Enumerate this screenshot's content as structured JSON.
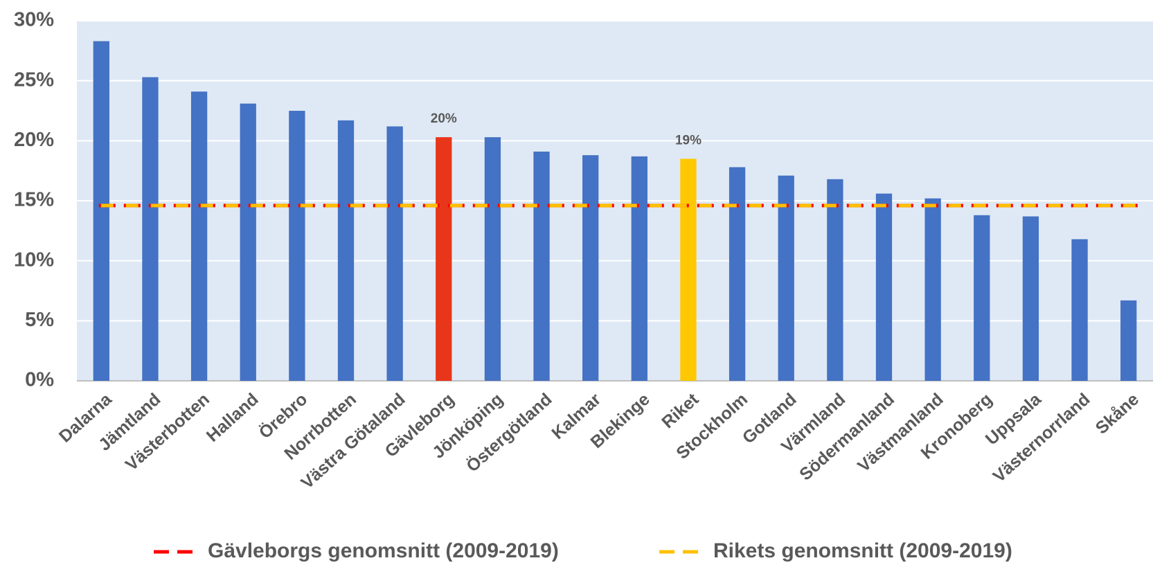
{
  "chart_data": {
    "type": "bar",
    "categories": [
      "Dalarna",
      "Jämtland",
      "Västerbotten",
      "Halland",
      "Örebro",
      "Norrbotten",
      "Västra Götaland",
      "Gävleborg",
      "Jönköping",
      "Östergötland",
      "Kalmar",
      "Blekinge",
      "Riket",
      "Stockholm",
      "Gotland",
      "Värmland",
      "Södermanland",
      "Västmanland",
      "Kronoberg",
      "Uppsala",
      "Västernorrland",
      "Skåne"
    ],
    "values": [
      28.3,
      25.3,
      24.1,
      23.1,
      22.5,
      21.7,
      21.2,
      20.3,
      20.3,
      19.1,
      18.8,
      18.7,
      18.5,
      17.8,
      17.1,
      16.8,
      15.6,
      15.2,
      13.8,
      13.7,
      11.8,
      6.7
    ],
    "value_labels": [
      null,
      null,
      null,
      null,
      null,
      null,
      null,
      "20%",
      null,
      null,
      null,
      null,
      "19%",
      null,
      null,
      null,
      null,
      null,
      null,
      null,
      null,
      null
    ],
    "colors": [
      "#4472c4",
      "#4472c4",
      "#4472c4",
      "#4472c4",
      "#4472c4",
      "#4472c4",
      "#4472c4",
      "#e8361a",
      "#4472c4",
      "#4472c4",
      "#4472c4",
      "#4472c4",
      "#ffc800",
      "#4472c4",
      "#4472c4",
      "#4472c4",
      "#4472c4",
      "#4472c4",
      "#4472c4",
      "#4472c4",
      "#4472c4",
      "#4472c4"
    ],
    "reference_lines": [
      {
        "name": "Gävleborgs genomsnitt (2009-2019)",
        "color": "#ff0000",
        "value": 14.6
      },
      {
        "name": "Rikets genomsnitt (2009-2019)",
        "color": "#ffc000",
        "value": 14.6
      }
    ],
    "ylim": [
      0,
      30
    ],
    "yticks": [
      {
        "value": 0,
        "label": "0%"
      },
      {
        "value": 5,
        "label": "5%"
      },
      {
        "value": 10,
        "label": "10%"
      },
      {
        "value": 15,
        "label": "15%"
      },
      {
        "value": 20,
        "label": "20%"
      },
      {
        "value": 25,
        "label": "25%"
      },
      {
        "value": 30,
        "label": "30%"
      }
    ],
    "grid": true,
    "legend": "bottom"
  }
}
